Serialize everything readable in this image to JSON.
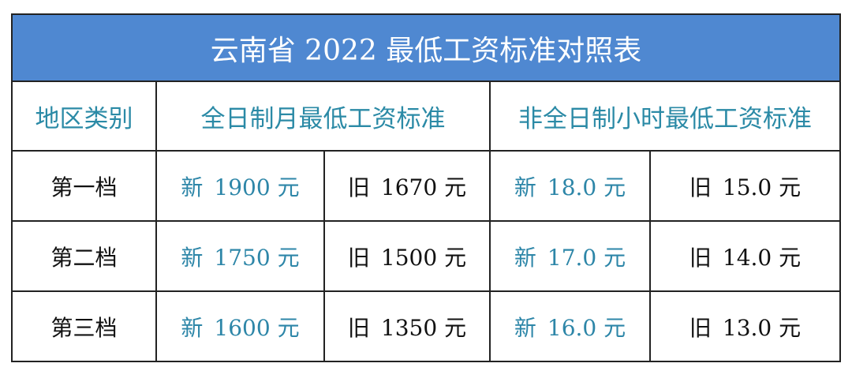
{
  "title": "云南省 2022 最低工资标准对照表",
  "headers": {
    "region": "地区类别",
    "monthly": "全日制月最低工资标准",
    "hourly": "非全日制小时最低工资标准"
  },
  "labels": {
    "new": "新",
    "old": "旧"
  },
  "rows": [
    {
      "tier": "第一档",
      "monthly_new": "1900 元",
      "monthly_old": "1670 元",
      "hourly_new": "18.0 元",
      "hourly_old": "15.0 元"
    },
    {
      "tier": "第二档",
      "monthly_new": "1750 元",
      "monthly_old": "1500 元",
      "hourly_new": "17.0 元",
      "hourly_old": "14.0 元"
    },
    {
      "tier": "第三档",
      "monthly_new": "1600 元",
      "monthly_old": "1350 元",
      "hourly_new": "16.0 元",
      "hourly_old": "13.0 元"
    }
  ],
  "colors": {
    "title_bg": "#4f88d1",
    "header_text": "#2b8aa6",
    "new_value_text": "#2d86a8"
  }
}
